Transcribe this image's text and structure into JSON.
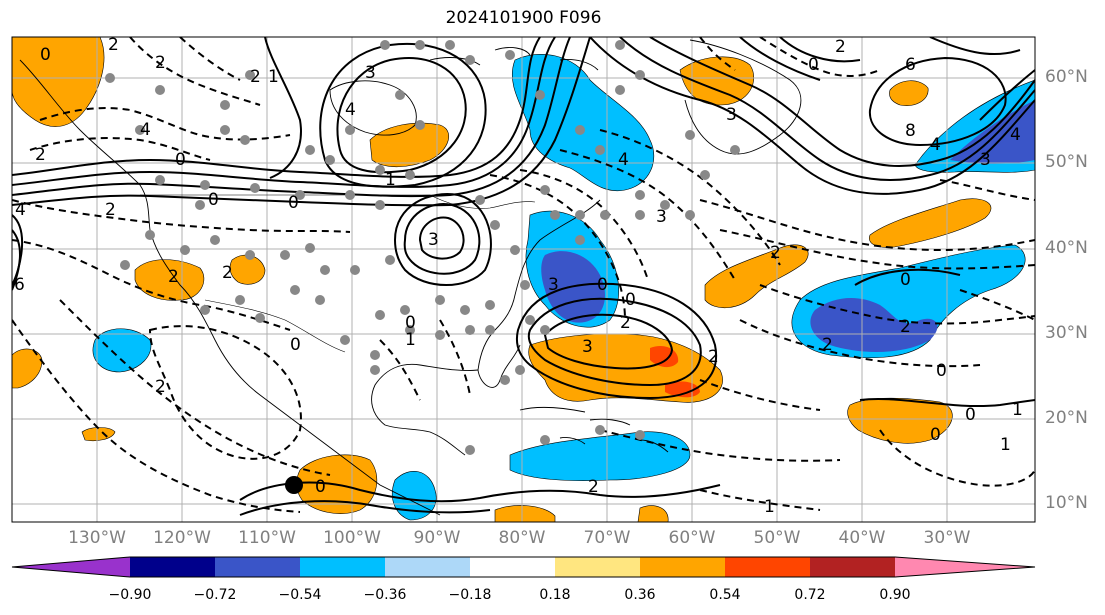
{
  "title": "2024101900 F096",
  "lat_ticks": [
    "60°N",
    "50°N",
    "40°N",
    "30°N",
    "20°N",
    "10°N"
  ],
  "lon_ticks": [
    "130°W",
    "120°W",
    "110°W",
    "100°W",
    "90°W",
    "80°W",
    "70°W",
    "60°W",
    "50°W",
    "40°W",
    "30°W"
  ],
  "colorbar": {
    "tick_labels": [
      "−0.90",
      "−0.72",
      "−0.54",
      "−0.36",
      "−0.18",
      "0.18",
      "0.36",
      "0.54",
      "0.72",
      "0.90"
    ],
    "colors": {
      "under": "#9932cc",
      "bins": [
        "#00008b",
        "#3a55c8",
        "#00bfff",
        "#add8f8",
        "#ffffff",
        "#ffe680",
        "#ffa500",
        "#ff4500",
        "#b22222"
      ],
      "over": "#ff88b0"
    }
  },
  "contour_labels": [
    "2",
    "2",
    "4",
    "3",
    "4",
    "0",
    "2",
    "0",
    "2",
    "0",
    "4",
    "2",
    "2",
    "2",
    "6",
    "3",
    "0",
    "0",
    "0",
    "3",
    "2",
    "2",
    "3",
    "0",
    "2",
    "0",
    "1",
    "2",
    "1",
    "6",
    "8",
    "3",
    "4",
    "4",
    "2",
    "4",
    "3",
    "2",
    "0",
    "2",
    "0",
    "3",
    "2",
    "0",
    "0",
    "1",
    "0",
    "1",
    "1",
    "1",
    "0"
  ],
  "marker_dot": true
}
